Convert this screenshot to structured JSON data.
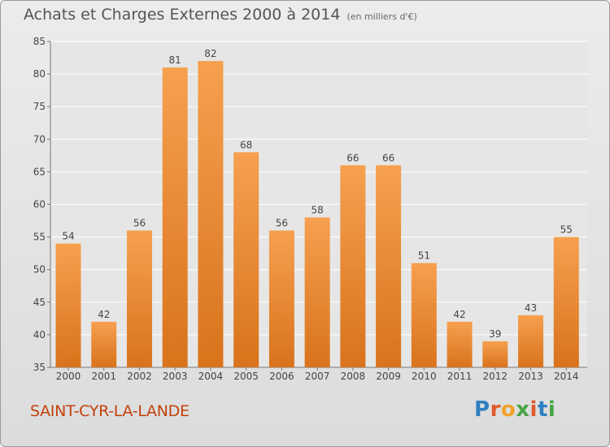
{
  "title": "Achats et Charges Externes 2000 à 2014",
  "unit": "(en milliers d'€)",
  "place": "SAINT-CYR-LA-LANDE",
  "logo": {
    "letters": [
      "P",
      "r",
      "o",
      "x",
      "i",
      "t",
      "i"
    ]
  },
  "colors": {
    "bar_top": "#f6a04f",
    "bar_bottom": "#d9731c",
    "grid": "#ffffff",
    "axis_text": "#444444"
  },
  "chart_data": {
    "type": "bar",
    "title": "Achats et Charges Externes 2000 à 2014",
    "categories": [
      "2000",
      "2001",
      "2002",
      "2003",
      "2004",
      "2005",
      "2006",
      "2007",
      "2008",
      "2009",
      "2010",
      "2011",
      "2012",
      "2013",
      "2014"
    ],
    "values": [
      54,
      42,
      56,
      81,
      82,
      68,
      56,
      58,
      66,
      66,
      51,
      42,
      39,
      43,
      55
    ],
    "ylim": [
      35,
      85
    ],
    "yticks": [
      35,
      40,
      45,
      50,
      55,
      60,
      65,
      70,
      75,
      80,
      85
    ],
    "grid": true
  }
}
